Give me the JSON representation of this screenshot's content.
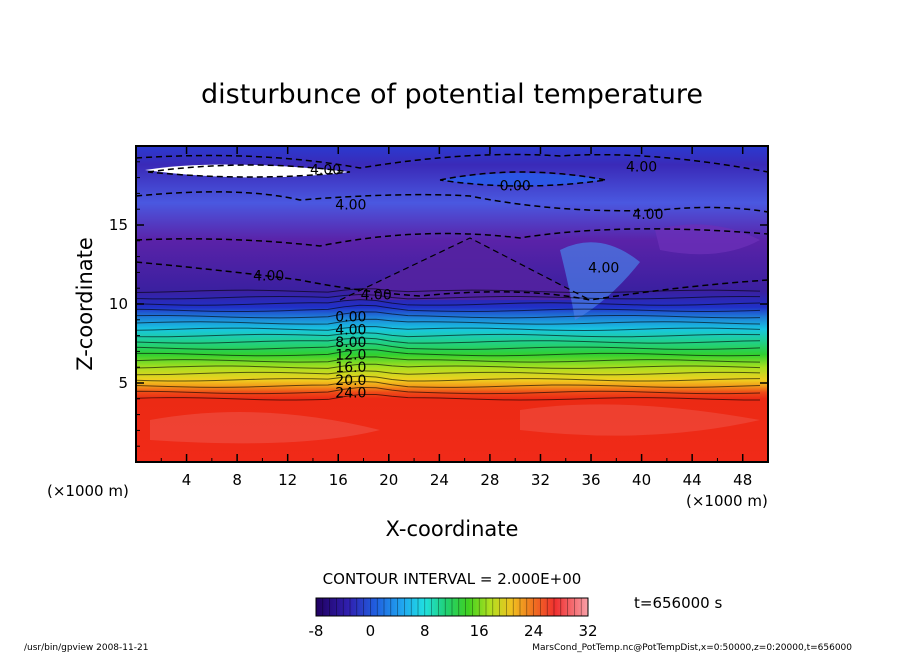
{
  "chart_data": {
    "type": "heatmap",
    "title": "disturbunce of potential temperature",
    "xlabel": "X-coordinate",
    "ylabel": "Z-coordinate",
    "x_unit": "(×1000 m)",
    "y_unit": "(×1000 m)",
    "xlim": [
      0,
      50
    ],
    "ylim": [
      0,
      20
    ],
    "x_ticks": [
      4,
      8,
      12,
      16,
      20,
      24,
      28,
      32,
      36,
      40,
      44,
      48
    ],
    "y_ticks": [
      5,
      10,
      15
    ],
    "contour_interval_text": "CONTOUR INTERVAL = 2.000E+00",
    "time_text": "t=656000 s",
    "colorbar": {
      "min": -8,
      "max": 32,
      "ticks": [
        -8,
        0,
        8,
        16,
        24,
        32
      ]
    },
    "contour_labels": [
      {
        "x": 15.0,
        "z": 18.5,
        "text": "4.00"
      },
      {
        "x": 17.0,
        "z": 16.3,
        "text": "4.00"
      },
      {
        "x": 30.0,
        "z": 17.5,
        "text": "0.00"
      },
      {
        "x": 40.0,
        "z": 18.7,
        "text": "4.00"
      },
      {
        "x": 40.5,
        "z": 15.7,
        "text": "4.00"
      },
      {
        "x": 10.5,
        "z": 11.8,
        "text": "4.00"
      },
      {
        "x": 37.0,
        "z": 12.3,
        "text": "4.00"
      },
      {
        "x": 19.0,
        "z": 10.6,
        "text": "4.00"
      },
      {
        "x": 17.0,
        "z": 9.2,
        "text": "0.00"
      },
      {
        "x": 17.0,
        "z": 8.4,
        "text": "4.00"
      },
      {
        "x": 17.0,
        "z": 7.6,
        "text": "8.00"
      },
      {
        "x": 17.0,
        "z": 6.8,
        "text": "12.0"
      },
      {
        "x": 17.0,
        "z": 6.0,
        "text": "16.0"
      },
      {
        "x": 17.0,
        "z": 5.2,
        "text": "20.0"
      },
      {
        "x": 17.0,
        "z": 4.4,
        "text": "24.0"
      }
    ]
  },
  "footer": {
    "left": "/usr/bin/gpview  2008-11-21",
    "right": "MarsCond_PotTemp.nc@PotTempDist,x=0:50000,z=0:20000,t=656000"
  }
}
